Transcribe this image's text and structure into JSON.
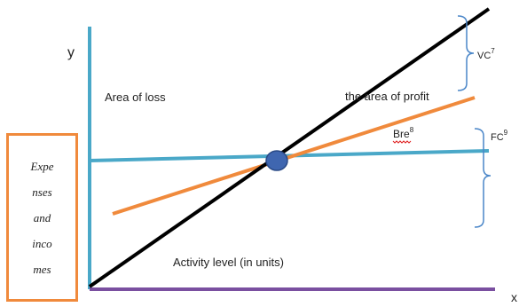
{
  "axes": {
    "y_label": "y",
    "x_label": "x"
  },
  "regions": {
    "loss": "Area of loss",
    "profit": "the area of profit"
  },
  "curves": {
    "vc_label": "VC",
    "vc_sup": "7",
    "fc_label": "FC",
    "fc_sup": "9",
    "bre_label": "Bre",
    "bre_sup": "8"
  },
  "activity_label": "Activity level (in units)",
  "side_box": {
    "lines": [
      "Expe",
      "nses",
      "and",
      "inco",
      "mes"
    ]
  },
  "colors": {
    "y_axis": "#4aa8c8",
    "x_axis": "#7a4fa0",
    "fixed_cost_line": "#4aa8c8",
    "variable_cost_line": "#f08a3c",
    "revenue_line": "#000000",
    "breakeven_point": "#3f66b0",
    "braces": "#4a86c8",
    "box_border": "#f08a3c"
  }
}
